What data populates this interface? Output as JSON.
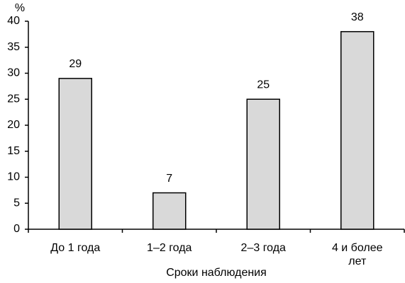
{
  "chart_data": {
    "type": "bar",
    "y_axis_label": "%",
    "x_axis_label": "Сроки наблюдения",
    "categories": [
      "До 1 года",
      "1–2 года",
      "2–3 года",
      "4 и более лет"
    ],
    "values": [
      29,
      7,
      25,
      38
    ],
    "color": "#d9d9d9",
    "ylim": [
      0,
      40
    ],
    "yticks": [
      0,
      5,
      10,
      15,
      20,
      25,
      30,
      35,
      40
    ],
    "grid": false
  }
}
